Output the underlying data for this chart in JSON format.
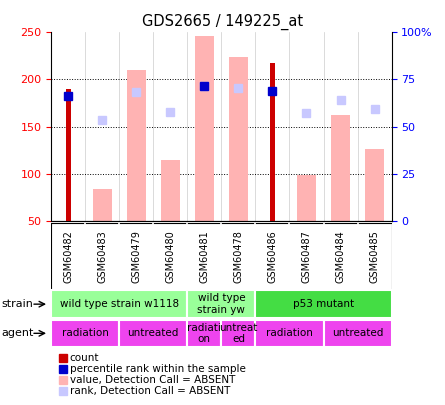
{
  "title": "GDS2665 / 149225_at",
  "samples": [
    "GSM60482",
    "GSM60483",
    "GSM60479",
    "GSM60480",
    "GSM60481",
    "GSM60478",
    "GSM60486",
    "GSM60487",
    "GSM60484",
    "GSM60485"
  ],
  "count_values": [
    190,
    null,
    null,
    null,
    null,
    null,
    218,
    null,
    null,
    null
  ],
  "percentile_rank": [
    182,
    null,
    null,
    null,
    193,
    null,
    188,
    null,
    null,
    null
  ],
  "absent_bar_values": [
    null,
    84,
    210,
    114,
    246,
    224,
    null,
    99,
    162,
    126
  ],
  "absent_rank_values": [
    null,
    157,
    187,
    165,
    193,
    191,
    null,
    164,
    178,
    169
  ],
  "ylim": [
    50,
    250
  ],
  "yticks": [
    50,
    100,
    150,
    200,
    250
  ],
  "y2ticks": [
    0,
    25,
    50,
    75,
    100
  ],
  "y2labels": [
    "0",
    "25",
    "50",
    "75",
    "100%"
  ],
  "color_count": "#cc0000",
  "color_rank": "#0000cc",
  "color_absent_bar": "#ffb3b3",
  "color_absent_rank": "#c8c8ff",
  "color_gsm_bg": "#d0d0d0",
  "strain_groups": [
    {
      "label": "wild type strain w1118",
      "start": 0,
      "end": 4,
      "color": "#99ff99"
    },
    {
      "label": "wild type\nstrain yw",
      "start": 4,
      "end": 6,
      "color": "#99ff99"
    },
    {
      "label": "p53 mutant",
      "start": 6,
      "end": 10,
      "color": "#44dd44"
    }
  ],
  "agent_groups": [
    {
      "label": "radiation",
      "start": 0,
      "end": 2,
      "color": "#ee44ee"
    },
    {
      "label": "untreated",
      "start": 2,
      "end": 4,
      "color": "#ee44ee"
    },
    {
      "label": "radiati-\non",
      "start": 4,
      "end": 5,
      "color": "#ee44ee"
    },
    {
      "label": "untreat-\ned",
      "start": 5,
      "end": 6,
      "color": "#ee44ee"
    },
    {
      "label": "radiation",
      "start": 6,
      "end": 8,
      "color": "#ee44ee"
    },
    {
      "label": "untreated",
      "start": 8,
      "end": 10,
      "color": "#ee44ee"
    }
  ],
  "legend_items": [
    {
      "label": "count",
      "color": "#cc0000"
    },
    {
      "label": "percentile rank within the sample",
      "color": "#0000cc"
    },
    {
      "label": "value, Detection Call = ABSENT",
      "color": "#ffb3b3"
    },
    {
      "label": "rank, Detection Call = ABSENT",
      "color": "#c8c8ff"
    }
  ]
}
